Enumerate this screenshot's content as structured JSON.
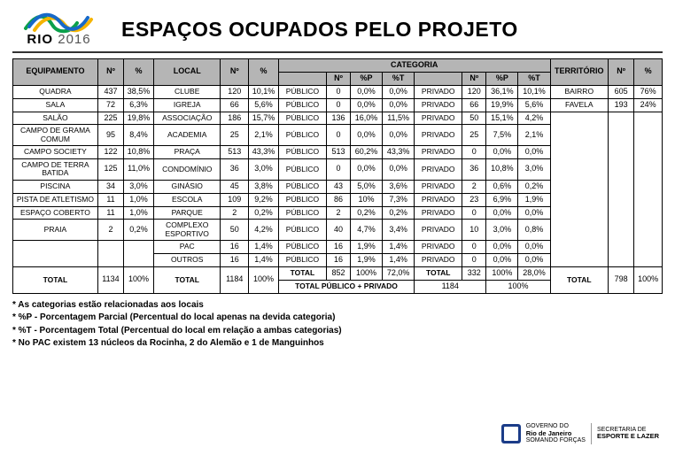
{
  "header": {
    "logo_top": "RIO",
    "logo_year": "2016",
    "title": "ESPAÇOS OCUPADOS PELO PROJETO"
  },
  "columns": {
    "equip": "EQUIPAMENTO",
    "n": "Nº",
    "pct": "%",
    "local": "LOCAL",
    "categoria": "CATEGORIA",
    "pctP": "%P",
    "pctT": "%T",
    "territorio": "TERRITÓRIO"
  },
  "equip": [
    {
      "name": "QUADRA",
      "n": "437",
      "pct": "38,5%"
    },
    {
      "name": "SALA",
      "n": "72",
      "pct": "6,3%"
    },
    {
      "name": "SALÃO",
      "n": "225",
      "pct": "19,8%"
    },
    {
      "name": "CAMPO DE GRAMA COMUM",
      "n": "95",
      "pct": "8,4%"
    },
    {
      "name": "CAMPO SOCIETY",
      "n": "122",
      "pct": "10,8%"
    },
    {
      "name": "CAMPO DE TERRA BATIDA",
      "n": "125",
      "pct": "11,0%"
    },
    {
      "name": "PISCINA",
      "n": "34",
      "pct": "3,0%"
    },
    {
      "name": "PISTA DE ATLETISMO",
      "n": "11",
      "pct": "1,0%"
    },
    {
      "name": "ESPAÇO COBERTO",
      "n": "11",
      "pct": "1,0%"
    },
    {
      "name": "PRAIA",
      "n": "2",
      "pct": "0,2%"
    }
  ],
  "equip_total": {
    "label": "TOTAL",
    "n": "1134",
    "pct": "100%"
  },
  "local": [
    {
      "name": "CLUBE",
      "n": "120",
      "pct": "10,1%"
    },
    {
      "name": "IGREJA",
      "n": "66",
      "pct": "5,6%"
    },
    {
      "name": "ASSOCIAÇÃO",
      "n": "186",
      "pct": "15,7%"
    },
    {
      "name": "ACADEMIA",
      "n": "25",
      "pct": "2,1%"
    },
    {
      "name": "PRAÇA",
      "n": "513",
      "pct": "43,3%"
    },
    {
      "name": "CONDOMÍNIO",
      "n": "36",
      "pct": "3,0%"
    },
    {
      "name": "GINÁSIO",
      "n": "45",
      "pct": "3,8%"
    },
    {
      "name": "ESCOLA",
      "n": "109",
      "pct": "9,2%"
    },
    {
      "name": "PARQUE",
      "n": "2",
      "pct": "0,2%"
    },
    {
      "name": "COMPLEXO ESPORTIVO",
      "n": "50",
      "pct": "4,2%"
    },
    {
      "name": "PAC",
      "n": "16",
      "pct": "1,4%"
    },
    {
      "name": "OUTROS",
      "n": "16",
      "pct": "1,4%"
    }
  ],
  "local_total": {
    "label": "TOTAL",
    "n": "1184",
    "pct": "100%"
  },
  "categoria": {
    "pub_label": "PÚBLICO",
    "priv_label": "PRIVADO",
    "rows": [
      {
        "pub_n": "0",
        "pub_p": "0,0%",
        "pub_t": "0,0%",
        "priv_n": "120",
        "priv_p": "36,1%",
        "priv_t": "10,1%"
      },
      {
        "pub_n": "0",
        "pub_p": "0,0%",
        "pub_t": "0,0%",
        "priv_n": "66",
        "priv_p": "19,9%",
        "priv_t": "5,6%"
      },
      {
        "pub_n": "136",
        "pub_p": "16,0%",
        "pub_t": "11,5%",
        "priv_n": "50",
        "priv_p": "15,1%",
        "priv_t": "4,2%"
      },
      {
        "pub_n": "0",
        "pub_p": "0,0%",
        "pub_t": "0,0%",
        "priv_n": "25",
        "priv_p": "7,5%",
        "priv_t": "2,1%"
      },
      {
        "pub_n": "513",
        "pub_p": "60,2%",
        "pub_t": "43,3%",
        "priv_n": "0",
        "priv_p": "0,0%",
        "priv_t": "0,0%"
      },
      {
        "pub_n": "0",
        "pub_p": "0,0%",
        "pub_t": "0,0%",
        "priv_n": "36",
        "priv_p": "10,8%",
        "priv_t": "3,0%"
      },
      {
        "pub_n": "43",
        "pub_p": "5,0%",
        "pub_t": "3,6%",
        "priv_n": "2",
        "priv_p": "0,6%",
        "priv_t": "0,2%"
      },
      {
        "pub_n": "86",
        "pub_p": "10%",
        "pub_t": "7,3%",
        "priv_n": "23",
        "priv_p": "6,9%",
        "priv_t": "1,9%"
      },
      {
        "pub_n": "2",
        "pub_p": "0,2%",
        "pub_t": "0,2%",
        "priv_n": "0",
        "priv_p": "0,0%",
        "priv_t": "0,0%"
      },
      {
        "pub_n": "40",
        "pub_p": "4,7%",
        "pub_t": "3,4%",
        "priv_n": "10",
        "priv_p": "3,0%",
        "priv_t": "0,8%"
      },
      {
        "pub_n": "16",
        "pub_p": "1,9%",
        "pub_t": "1,4%",
        "priv_n": "0",
        "priv_p": "0,0%",
        "priv_t": "0,0%"
      },
      {
        "pub_n": "16",
        "pub_p": "1,9%",
        "pub_t": "1,4%",
        "priv_n": "0",
        "priv_p": "0,0%",
        "priv_t": "0,0%"
      }
    ],
    "total_row": {
      "label": "TOTAL",
      "pub_n": "852",
      "pub_p": "100%",
      "pub_t": "72,0%",
      "priv_label": "TOTAL",
      "priv_n": "332",
      "priv_p": "100%",
      "priv_t": "28,0%"
    },
    "grand": {
      "label": "TOTAL PÚBLICO + PRIVADO",
      "value": "1184",
      "pct": "100%"
    }
  },
  "territorio": {
    "rows": [
      {
        "name": "BAIRRO",
        "n": "605",
        "pct": "76%"
      },
      {
        "name": "FAVELA",
        "n": "193",
        "pct": "24%"
      }
    ],
    "total": {
      "label": "TOTAL",
      "n": "798",
      "pct": "100%"
    }
  },
  "notes": [
    "* As categorias estão relacionadas aos locais",
    "* %P - Porcentagem Parcial (Percentual do local apenas na devida categoria)",
    "* %T - Porcentagem Total (Percentual do local em relação a ambas categorias)",
    "* No PAC existem 13 núcleos da Rocinha, 2 do Alemão e 1 de Manguinhos"
  ],
  "footer": {
    "line1": "GOVERNO DO",
    "line2": "Rio de Janeiro",
    "line3": "SOMANDO FORÇAS",
    "line4": "SECRETARIA DE",
    "line5": "ESPORTE E LAZER"
  },
  "style": {
    "header_bg": "#b5b5b5",
    "border": "#000000",
    "page_bg": "#ffffff"
  }
}
